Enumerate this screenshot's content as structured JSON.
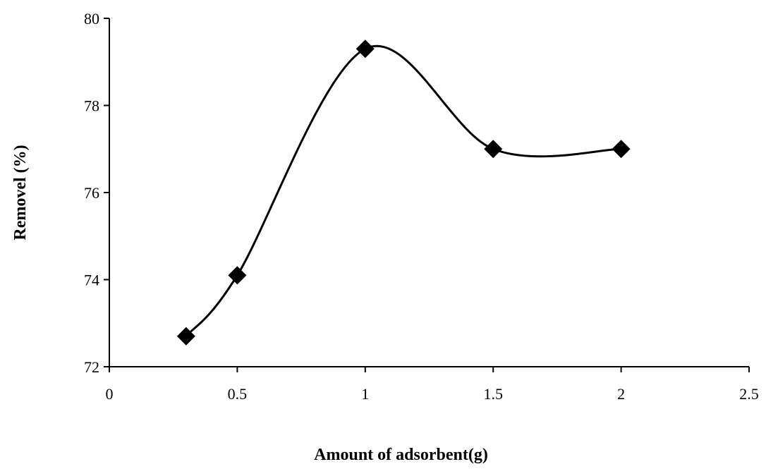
{
  "chart_data": {
    "type": "line",
    "title": "",
    "xlabel": "Amount of adsorbent(g)",
    "ylabel": "Removel (%)",
    "xlim": [
      0,
      2.5
    ],
    "ylim": [
      72,
      80
    ],
    "xticks": [
      "0",
      "0.5",
      "1",
      "1.5",
      "2",
      "2.5"
    ],
    "yticks": [
      "72",
      "74",
      "76",
      "78",
      "80"
    ],
    "grid": false,
    "legend": "none",
    "marker": "diamond",
    "smooth": true,
    "line_color": "#000000",
    "series": [
      {
        "x": [
          0.3,
          0.5,
          1.0,
          1.5,
          2.0
        ],
        "y": [
          72.7,
          74.1,
          79.3,
          77.0,
          77.0
        ]
      }
    ]
  }
}
